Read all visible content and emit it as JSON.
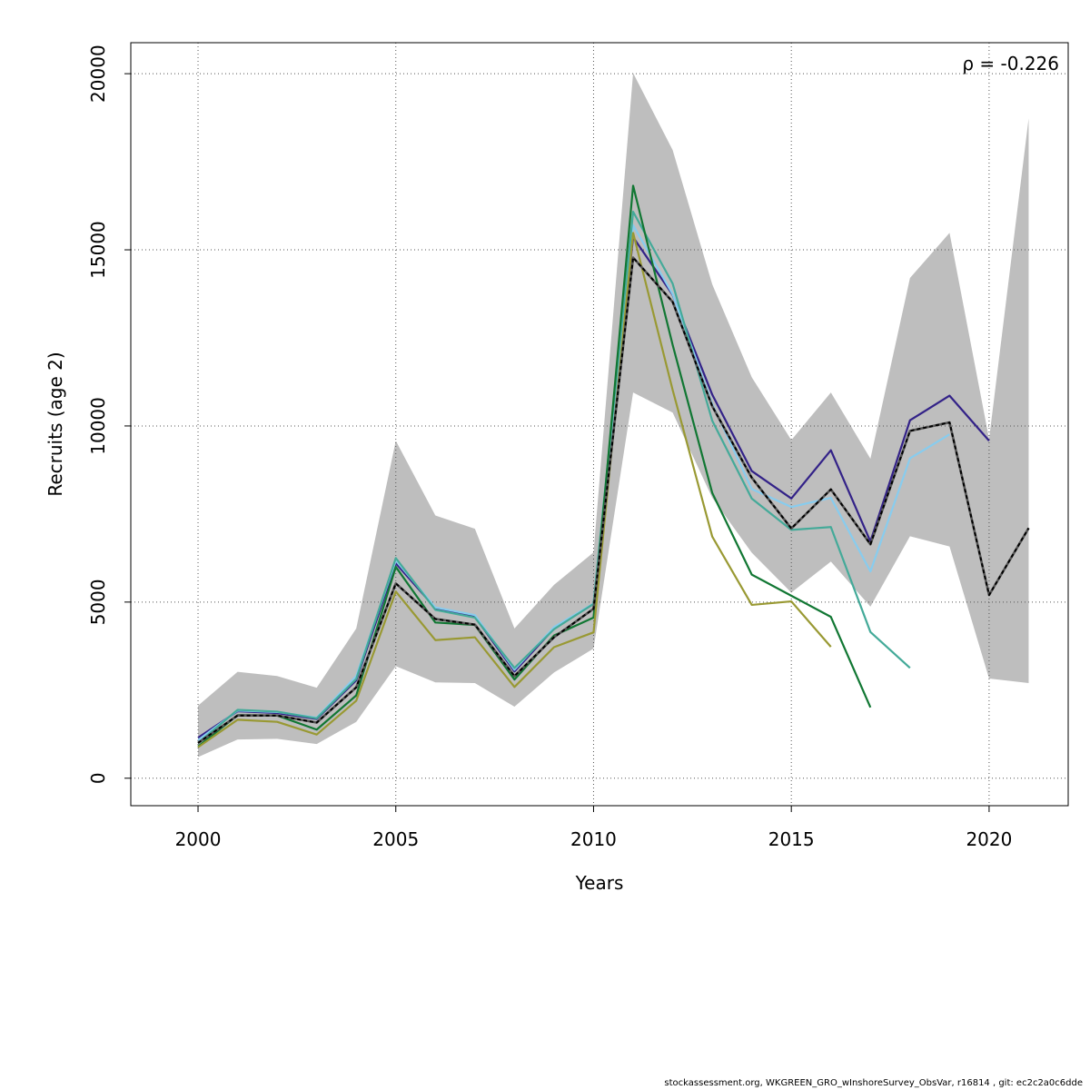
{
  "chart_data": {
    "type": "line",
    "xlabel": "Years",
    "ylabel": "Recruits (age 2)",
    "xlim": [
      1998.3,
      2022.0
    ],
    "ylim": [
      -780,
      20880
    ],
    "xticks": [
      2000,
      2005,
      2010,
      2015,
      2020
    ],
    "xtick_labels": [
      "2000",
      "2005",
      "2010",
      "2015",
      "2020"
    ],
    "yticks": [
      0,
      5000,
      10000,
      15000,
      20000
    ],
    "ytick_labels": [
      "0",
      "5000",
      "10000",
      "15000",
      "20000"
    ],
    "grid": true,
    "annotation": "ρ = -0.226",
    "confidence_band": {
      "x": [
        2000,
        2001,
        2002,
        2003,
        2004,
        2005,
        2006,
        2007,
        2008,
        2009,
        2010,
        2011,
        2012,
        2013,
        2014,
        2015,
        2016,
        2017,
        2018,
        2019,
        2020,
        2021
      ],
      "lower": [
        600,
        1100,
        1120,
        970,
        1600,
        3180,
        2720,
        2700,
        2030,
        3000,
        3680,
        10950,
        10380,
        7960,
        6400,
        5270,
        6150,
        4870,
        6870,
        6580,
        2830,
        2700
      ],
      "upper": [
        2060,
        3020,
        2900,
        2570,
        4250,
        9580,
        7460,
        7080,
        4250,
        5490,
        6410,
        20020,
        17830,
        14020,
        11380,
        9600,
        10950,
        9070,
        14200,
        15480,
        9630,
        18730
      ],
      "color": "#bebebe"
    },
    "series": [
      {
        "color": "#000000",
        "dashed": true,
        "x": [
          2000,
          2001,
          2002,
          2003,
          2004,
          2005,
          2006,
          2007,
          2008,
          2009,
          2010,
          2011,
          2012,
          2013,
          2014,
          2015,
          2016,
          2017,
          2018,
          2019,
          2020,
          2021
        ],
        "values": [
          1000,
          1780,
          1780,
          1580,
          2580,
          5530,
          4520,
          4360,
          2900,
          4000,
          4810,
          14780,
          13520,
          10560,
          8530,
          7090,
          8200,
          6640,
          9860,
          10100,
          5200,
          7100
        ]
      },
      {
        "color": "#332288",
        "dashed": false,
        "x": [
          2000,
          2001,
          2002,
          2003,
          2004,
          2005,
          2006,
          2007,
          2008,
          2009,
          2010,
          2011,
          2012,
          2013,
          2014,
          2015,
          2016,
          2017,
          2018,
          2019,
          2020
        ],
        "values": [
          1150,
          1900,
          1850,
          1680,
          2780,
          6100,
          4830,
          4580,
          3030,
          4250,
          4950,
          15360,
          13720,
          10890,
          8720,
          7940,
          9310,
          6720,
          10160,
          10860,
          9580
        ]
      },
      {
        "color": "#88ccee",
        "dashed": false,
        "x": [
          2000,
          2001,
          2002,
          2003,
          2004,
          2005,
          2006,
          2007,
          2008,
          2009,
          2010,
          2011,
          2012,
          2013,
          2014,
          2015,
          2016,
          2017,
          2018,
          2019
        ],
        "values": [
          1080,
          1920,
          1880,
          1720,
          2900,
          6180,
          4850,
          4630,
          3080,
          4290,
          4960,
          15700,
          13740,
          10620,
          8210,
          7700,
          7960,
          5870,
          9080,
          9760
        ]
      },
      {
        "color": "#44aa99",
        "dashed": false,
        "x": [
          2000,
          2001,
          2002,
          2003,
          2004,
          2005,
          2006,
          2007,
          2008,
          2009,
          2010,
          2011,
          2012,
          2013,
          2014,
          2015,
          2016,
          2017,
          2018
        ],
        "values": [
          1000,
          1940,
          1890,
          1700,
          2820,
          6250,
          4780,
          4560,
          3130,
          4230,
          4950,
          16080,
          14040,
          10150,
          7940,
          7050,
          7130,
          4150,
          3130
        ]
      },
      {
        "color": "#117733",
        "dashed": false,
        "x": [
          2000,
          2001,
          2002,
          2003,
          2004,
          2005,
          2006,
          2007,
          2008,
          2009,
          2010,
          2011,
          2012,
          2013,
          2014,
          2015,
          2016,
          2017
        ],
        "values": [
          900,
          1790,
          1780,
          1380,
          2350,
          6000,
          4420,
          4350,
          2800,
          4050,
          4560,
          16820,
          12300,
          8100,
          5780,
          5180,
          4580,
          2010
        ]
      },
      {
        "color": "#999933",
        "dashed": false,
        "x": [
          2000,
          2001,
          2002,
          2003,
          2004,
          2005,
          2006,
          2007,
          2008,
          2009,
          2010,
          2011,
          2012,
          2013,
          2014,
          2015,
          2016
        ],
        "values": [
          880,
          1660,
          1600,
          1240,
          2200,
          5300,
          3920,
          4000,
          2590,
          3720,
          4140,
          15480,
          11020,
          6860,
          4920,
          5020,
          3730
        ]
      }
    ]
  },
  "footer": "stockassessment.org, WKGREEN_GRO_wInshoreSurvey_ObsVar, r16814 , git: ec2c2a0c6dde"
}
